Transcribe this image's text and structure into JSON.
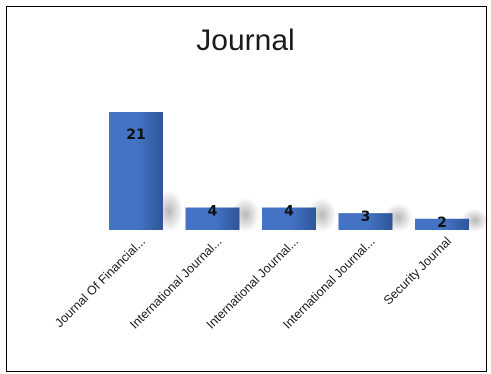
{
  "chart_data": {
    "type": "bar",
    "title": "Journal",
    "categories": [
      "Journal Of Financial...",
      "International Journal...",
      "International Journal...",
      "International Journal...",
      "Security Journal"
    ],
    "values": [
      21,
      4,
      4,
      3,
      2
    ],
    "ylim": [
      0,
      21
    ],
    "grid": false,
    "legend": "none",
    "bar_color": "#4472C4",
    "bar_color_dark": "#2F5597"
  }
}
